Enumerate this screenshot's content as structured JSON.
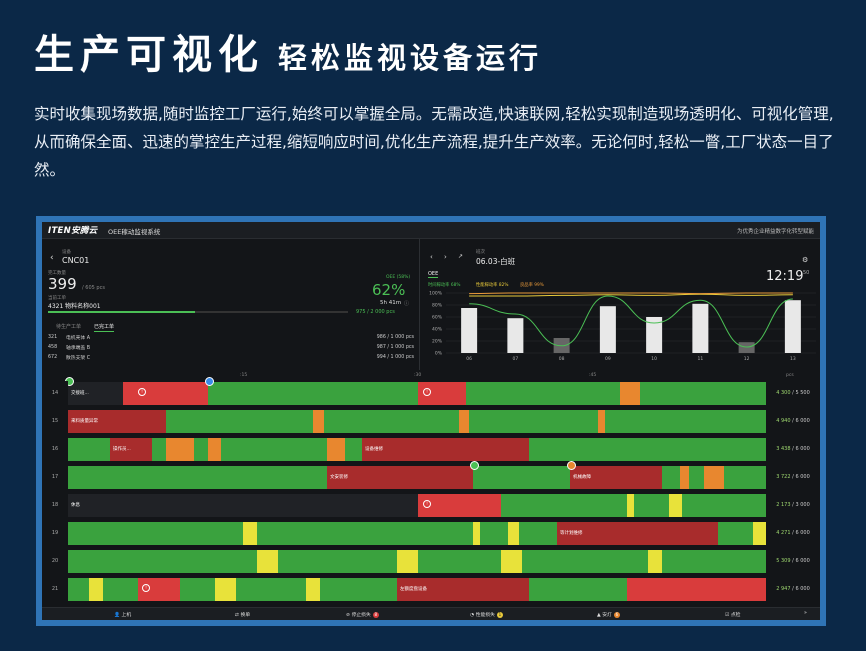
{
  "hero": {
    "title_main": "生产可视化",
    "title_sub": "轻松监视设备运行",
    "description": "实时收集现场数据,随时监控工厂运行,始终可以掌握全局。无需改造,快速联网,轻松实现制造现场透明化、可视化管理,从而确保全面、迅速的掌控生产过程,缩短响应时间,优化生产流程,提升生产效率。无论何时,轻松一瞥,工厂状态一目了然。"
  },
  "app": {
    "logo": "ITEN安腾云",
    "system_name": "OEE稼动监视系统",
    "slogan": "为优秀企业精益数字化转型赋能"
  },
  "machine": {
    "label": "设备",
    "name": "CNC01",
    "qty_label": "完工数量",
    "qty_done": "399",
    "qty_total": "/ 605 pcs",
    "order_label": "当前工单",
    "order": "4321 物料名称001",
    "oee_label": "OEE (58%)",
    "oee": "62%",
    "time_remaining": "5h 41m",
    "progress_text": "975 / 2 000 pcs",
    "progress_fraction": 0.49,
    "tab_pending": "待生产工单",
    "tab_done": "已完工单",
    "orders": [
      {
        "id": "321",
        "name": "电机壳体 A",
        "qty": "986 / 1 000 pcs"
      },
      {
        "id": "458",
        "name": "轴承端盖 B",
        "qty": "987 / 1 000 pcs"
      },
      {
        "id": "672",
        "name": "散热支架 C",
        "qty": "994 / 1 000 pcs"
      }
    ]
  },
  "shift": {
    "label": "班次",
    "name": "06.03-白班",
    "time": "12:19",
    "seconds": "50",
    "oee_title": "OEE",
    "legend": [
      {
        "label": "时间稼动率 68%",
        "color": "#4bbf55"
      },
      {
        "label": "性能稼动率 82%",
        "color": "#e8c93a"
      },
      {
        "label": "良品率 99%",
        "color": "#e89a3a"
      }
    ]
  },
  "chart_data": {
    "type": "bar",
    "categories": [
      "06",
      "07",
      "08",
      "09",
      "10",
      "11",
      "12",
      "13"
    ],
    "y_ticks": [
      "100%",
      "80%",
      "60%",
      "40%",
      "20%",
      "0%"
    ],
    "ylim": [
      0,
      100
    ],
    "series": [
      {
        "name": "OEE",
        "values": [
          75,
          58,
          25,
          78,
          60,
          82,
          18,
          88
        ]
      },
      {
        "name": "时间稼动率",
        "values": [
          82,
          65,
          12,
          95,
          50,
          88,
          10,
          90
        ]
      },
      {
        "name": "性能稼动率",
        "values": [
          95,
          95,
          96,
          97,
          96,
          98,
          96,
          97
        ]
      },
      {
        "name": "良品率",
        "values": [
          99,
          100,
          100,
          100,
          100,
          99,
          100,
          100
        ]
      }
    ]
  },
  "timeline": {
    "ticks": [
      ":15",
      ":30",
      ":45"
    ],
    "unit": "pcs",
    "rows": [
      {
        "label": "14",
        "total": "4 300",
        "target": "5 500"
      },
      {
        "label": "15",
        "total": "4 940",
        "target": "6 000"
      },
      {
        "label": "16",
        "total": "3 438",
        "target": "6 000"
      },
      {
        "label": "17",
        "total": "3 722",
        "target": "6 000"
      },
      {
        "label": "18",
        "total": "2 173",
        "target": "3 000"
      },
      {
        "label": "19",
        "total": "4 271",
        "target": "6 000"
      },
      {
        "label": "20",
        "total": "5 309",
        "target": "6 000"
      },
      {
        "label": "21",
        "total": "2 947",
        "target": "6 000"
      }
    ],
    "seg_labels": {
      "r14": "交接班...",
      "r15": "来料质量异常",
      "r16a": "操作员...",
      "r16b": "设备维修",
      "r17a": "文安装修",
      "r17b": "机械故障",
      "r18": "休息",
      "r19": "等计划维修",
      "r21": "左额度盘设备"
    }
  },
  "bottombar": {
    "items": [
      {
        "label": "上机"
      },
      {
        "label": "换单"
      },
      {
        "label": "停止损失",
        "badge": "8",
        "color": "#d93c3c"
      },
      {
        "label": "性能损失",
        "badge": "1",
        "color": "#e8c93a"
      },
      {
        "label": "安灯",
        "badge": "6",
        "color": "#e8872f"
      },
      {
        "label": "点检"
      }
    ],
    "more": "»"
  },
  "colors": {
    "run": "#3aa23e",
    "stop": "#d93c3c",
    "stop_dark": "#a82c2c",
    "warn": "#e8e23a",
    "orange": "#e8872f",
    "idle": "#202226"
  }
}
